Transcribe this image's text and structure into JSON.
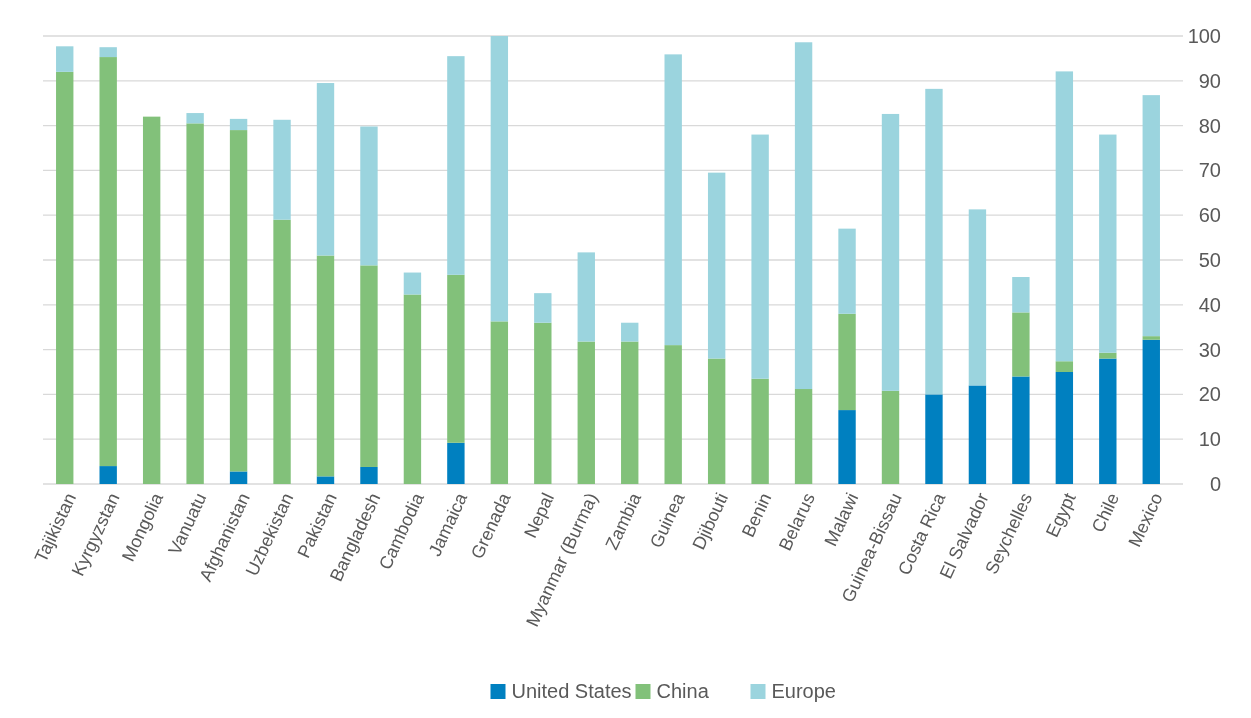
{
  "chart_data": {
    "type": "bar",
    "stacked": true,
    "categories": [
      "Tajikistan",
      "Kyrgyzstan",
      "Mongolia",
      "Vanuatu",
      "Afghanistan",
      "Uzbekistan",
      "Pakistan",
      "Bangladesh",
      "Cambodia",
      "Jamaica",
      "Grenada",
      "Nepal",
      "Myanmar (Burma)",
      "Zambia",
      "Guinea",
      "Djibouti",
      "Benin",
      "Belarus",
      "Malawi",
      "Guinea-Bissau",
      "Costa Rica",
      "El Salvador",
      "Seychelles",
      "Egypt",
      "Chile",
      "Mexico"
    ],
    "series": [
      {
        "name": "United States",
        "color": "#0080c0",
        "values": [
          0,
          4,
          0,
          0,
          2.8,
          0,
          1.7,
          3.8,
          0,
          9.2,
          0,
          0,
          0,
          0,
          0,
          0,
          0,
          0,
          16.5,
          0,
          20,
          22,
          24,
          25,
          28,
          32.2
        ]
      },
      {
        "name": "China",
        "color": "#82c17a",
        "values": [
          92,
          91.3,
          82,
          80.5,
          76.2,
          59,
          49.3,
          45,
          42.3,
          37.5,
          36.3,
          36,
          31.8,
          31.8,
          31,
          28,
          23.5,
          21.2,
          21.5,
          20.8,
          0,
          0,
          14.3,
          2.4,
          1.3,
          0.8
        ]
      },
      {
        "name": "Europe",
        "color": "#9bd4de",
        "values": [
          5.7,
          2.2,
          0,
          2.3,
          2.5,
          22.3,
          38.5,
          31,
          4.9,
          48.8,
          63.7,
          6.6,
          19.9,
          4.2,
          64.9,
          41.5,
          54.5,
          77.4,
          19,
          61.8,
          68.2,
          39.3,
          7.9,
          64.7,
          48.7,
          53.8
        ]
      }
    ],
    "ylim": [
      0,
      100
    ],
    "yticks": [
      0,
      10,
      20,
      30,
      40,
      50,
      60,
      70,
      80,
      90,
      100
    ],
    "grid": "y",
    "legend": "bottom"
  }
}
